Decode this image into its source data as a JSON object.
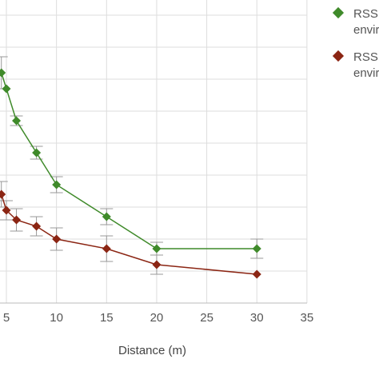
{
  "chart_data": {
    "type": "line",
    "title": "",
    "xlabel": "Distance (m)",
    "ylabel": "",
    "xlim": [
      0,
      35
    ],
    "x_ticks": [
      "5",
      "10",
      "15",
      "20",
      "25",
      "30",
      "35"
    ],
    "grid": true,
    "legend_placement": "top-right",
    "series": [
      {
        "name": "RSSI ... envir...",
        "legend_line1": "RSSI",
        "legend_line2": "envir",
        "color": "#3f8a2a",
        "x": [
          4.5,
          5,
          6,
          8,
          10,
          15,
          20,
          30
        ],
        "y": [
          7.2,
          6.7,
          5.7,
          4.7,
          3.7,
          2.7,
          1.7,
          1.7
        ],
        "err": [
          0.5,
          0.0,
          0.15,
          0.2,
          0.25,
          0.25,
          0.2,
          0.3
        ]
      },
      {
        "name": "RSSI ... envir...",
        "legend_line1": "RSSI",
        "legend_line2": "envir",
        "color": "#8b2513",
        "x": [
          4.5,
          5,
          6,
          8,
          10,
          15,
          20,
          30
        ],
        "y": [
          3.4,
          2.9,
          2.6,
          2.4,
          2.0,
          1.7,
          1.2,
          0.9
        ],
        "err": [
          0.4,
          0.3,
          0.35,
          0.3,
          0.35,
          0.4,
          0.3,
          0.0
        ]
      }
    ]
  }
}
